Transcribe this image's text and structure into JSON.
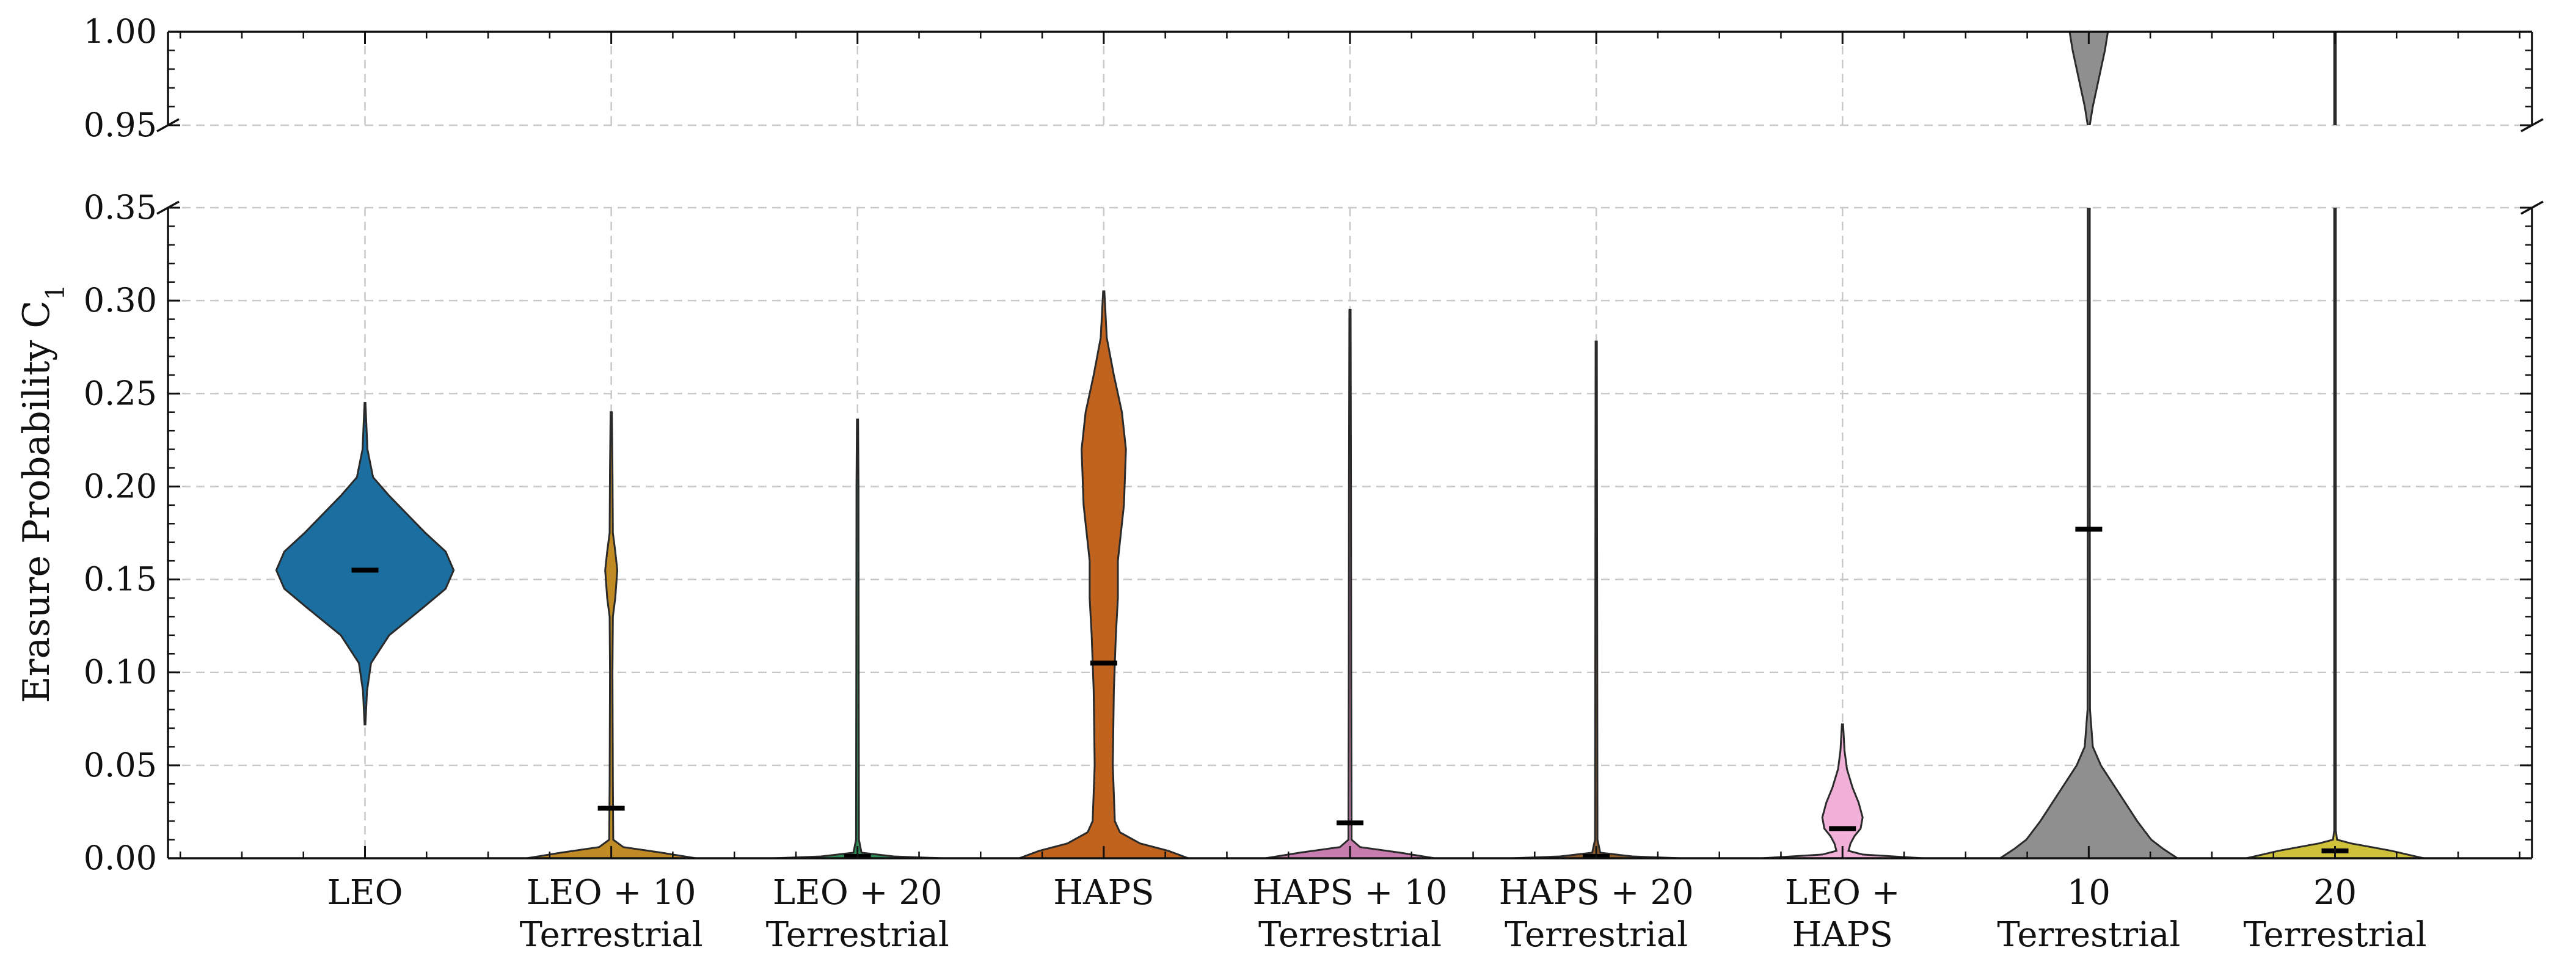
{
  "chart_data": {
    "type": "violin",
    "ylabel": "Erasure Probability C",
    "ylabel_subscript": "1",
    "broken_y_axis": true,
    "ylim_lower": [
      0.0,
      0.35
    ],
    "ylim_upper": [
      0.95,
      1.0
    ],
    "yticks_lower": [
      "0.00",
      "0.05",
      "0.10",
      "0.15",
      "0.20",
      "0.25",
      "0.30",
      "0.35"
    ],
    "yticks_upper": [
      "0.95",
      "1.00"
    ],
    "grid": true,
    "categories": [
      {
        "line1": "LEO",
        "line2": ""
      },
      {
        "line1": "LEO + 10",
        "line2": "Terrestrial"
      },
      {
        "line1": "LEO + 20",
        "line2": "Terrestrial"
      },
      {
        "line1": "HAPS",
        "line2": ""
      },
      {
        "line1": "HAPS + 10",
        "line2": "Terrestrial"
      },
      {
        "line1": "HAPS + 20",
        "line2": "Terrestrial"
      },
      {
        "line1": "LEO +",
        "line2": "HAPS"
      },
      {
        "line1": "10",
        "line2": "Terrestrial"
      },
      {
        "line1": "20",
        "line2": "Terrestrial"
      }
    ],
    "series": [
      {
        "category_index": 0,
        "color": "#1a6fa0",
        "mean": 0.155,
        "min": 0.072,
        "max": 0.245,
        "profile": [
          [
            0.072,
            0.002
          ],
          [
            0.09,
            0.01
          ],
          [
            0.105,
            0.03
          ],
          [
            0.12,
            0.12
          ],
          [
            0.135,
            0.29
          ],
          [
            0.145,
            0.4
          ],
          [
            0.155,
            0.44
          ],
          [
            0.165,
            0.4
          ],
          [
            0.175,
            0.3
          ],
          [
            0.185,
            0.21
          ],
          [
            0.195,
            0.12
          ],
          [
            0.205,
            0.04
          ],
          [
            0.22,
            0.012
          ],
          [
            0.245,
            0.002
          ]
        ]
      },
      {
        "category_index": 1,
        "color": "#c08a25",
        "mean": 0.027,
        "min": 0.0,
        "max": 0.24,
        "profile": [
          [
            0.0,
            0.42
          ],
          [
            0.003,
            0.25
          ],
          [
            0.006,
            0.06
          ],
          [
            0.01,
            0.01
          ],
          [
            0.04,
            0.008
          ],
          [
            0.1,
            0.006
          ],
          [
            0.13,
            0.008
          ],
          [
            0.14,
            0.02
          ],
          [
            0.155,
            0.03
          ],
          [
            0.165,
            0.02
          ],
          [
            0.175,
            0.008
          ],
          [
            0.21,
            0.006
          ],
          [
            0.24,
            0.003
          ]
        ]
      },
      {
        "category_index": 2,
        "color": "#2e8b57",
        "mean": 0.001,
        "min": 0.0,
        "max": 0.236,
        "profile": [
          [
            0.0,
            0.42
          ],
          [
            0.001,
            0.18
          ],
          [
            0.003,
            0.02
          ],
          [
            0.01,
            0.007
          ],
          [
            0.1,
            0.006
          ],
          [
            0.2,
            0.005
          ],
          [
            0.236,
            0.003
          ]
        ]
      },
      {
        "category_index": 3,
        "color": "#c0631e",
        "mean": 0.105,
        "min": 0.0,
        "max": 0.305,
        "profile": [
          [
            0.0,
            0.42
          ],
          [
            0.004,
            0.32
          ],
          [
            0.008,
            0.18
          ],
          [
            0.014,
            0.08
          ],
          [
            0.02,
            0.055
          ],
          [
            0.05,
            0.045
          ],
          [
            0.09,
            0.05
          ],
          [
            0.12,
            0.06
          ],
          [
            0.14,
            0.07
          ],
          [
            0.16,
            0.07
          ],
          [
            0.19,
            0.1
          ],
          [
            0.22,
            0.11
          ],
          [
            0.24,
            0.09
          ],
          [
            0.26,
            0.05
          ],
          [
            0.28,
            0.015
          ],
          [
            0.305,
            0.003
          ]
        ]
      },
      {
        "category_index": 4,
        "color": "#c77eae",
        "mean": 0.019,
        "min": 0.0,
        "max": 0.295,
        "profile": [
          [
            0.0,
            0.42
          ],
          [
            0.003,
            0.25
          ],
          [
            0.006,
            0.05
          ],
          [
            0.01,
            0.008
          ],
          [
            0.1,
            0.006
          ],
          [
            0.2,
            0.005
          ],
          [
            0.295,
            0.003
          ]
        ]
      },
      {
        "category_index": 5,
        "color": "#8b5a2b",
        "mean": 0.001,
        "min": 0.0,
        "max": 0.278,
        "profile": [
          [
            0.0,
            0.42
          ],
          [
            0.001,
            0.18
          ],
          [
            0.003,
            0.02
          ],
          [
            0.01,
            0.006
          ],
          [
            0.1,
            0.005
          ],
          [
            0.2,
            0.004
          ],
          [
            0.278,
            0.003
          ]
        ]
      },
      {
        "category_index": 6,
        "color": "#f0b0d8",
        "mean": 0.016,
        "min": 0.0,
        "max": 0.072,
        "profile": [
          [
            0.0,
            0.4
          ],
          [
            0.002,
            0.1
          ],
          [
            0.004,
            0.03
          ],
          [
            0.008,
            0.04
          ],
          [
            0.012,
            0.06
          ],
          [
            0.016,
            0.09
          ],
          [
            0.022,
            0.1
          ],
          [
            0.03,
            0.08
          ],
          [
            0.038,
            0.05
          ],
          [
            0.048,
            0.022
          ],
          [
            0.058,
            0.01
          ],
          [
            0.072,
            0.003
          ]
        ]
      },
      {
        "category_index": 7,
        "color": "#8f8f8f",
        "mean": 0.177,
        "min": 0.0,
        "max": 1.0,
        "profile": [
          [
            0.0,
            0.44
          ],
          [
            0.005,
            0.37
          ],
          [
            0.01,
            0.31
          ],
          [
            0.02,
            0.24
          ],
          [
            0.03,
            0.18
          ],
          [
            0.04,
            0.12
          ],
          [
            0.05,
            0.06
          ],
          [
            0.06,
            0.02
          ],
          [
            0.08,
            0.006
          ],
          [
            0.2,
            0.005
          ],
          [
            0.3,
            0.005
          ],
          [
            0.35,
            0.005
          ],
          [
            0.95,
            0.005
          ],
          [
            0.96,
            0.02
          ],
          [
            0.97,
            0.04
          ],
          [
            0.98,
            0.06
          ],
          [
            0.99,
            0.08
          ],
          [
            1.0,
            0.095
          ]
        ]
      },
      {
        "category_index": 8,
        "color": "#cfc23a",
        "mean": 0.004,
        "min": 0.0,
        "max": 1.0,
        "profile": [
          [
            0.0,
            0.44
          ],
          [
            0.002,
            0.36
          ],
          [
            0.004,
            0.28
          ],
          [
            0.006,
            0.18
          ],
          [
            0.008,
            0.08
          ],
          [
            0.01,
            0.01
          ],
          [
            0.015,
            0.004
          ],
          [
            0.35,
            0.004
          ],
          [
            0.95,
            0.004
          ],
          [
            1.0,
            0.004
          ]
        ]
      }
    ]
  }
}
